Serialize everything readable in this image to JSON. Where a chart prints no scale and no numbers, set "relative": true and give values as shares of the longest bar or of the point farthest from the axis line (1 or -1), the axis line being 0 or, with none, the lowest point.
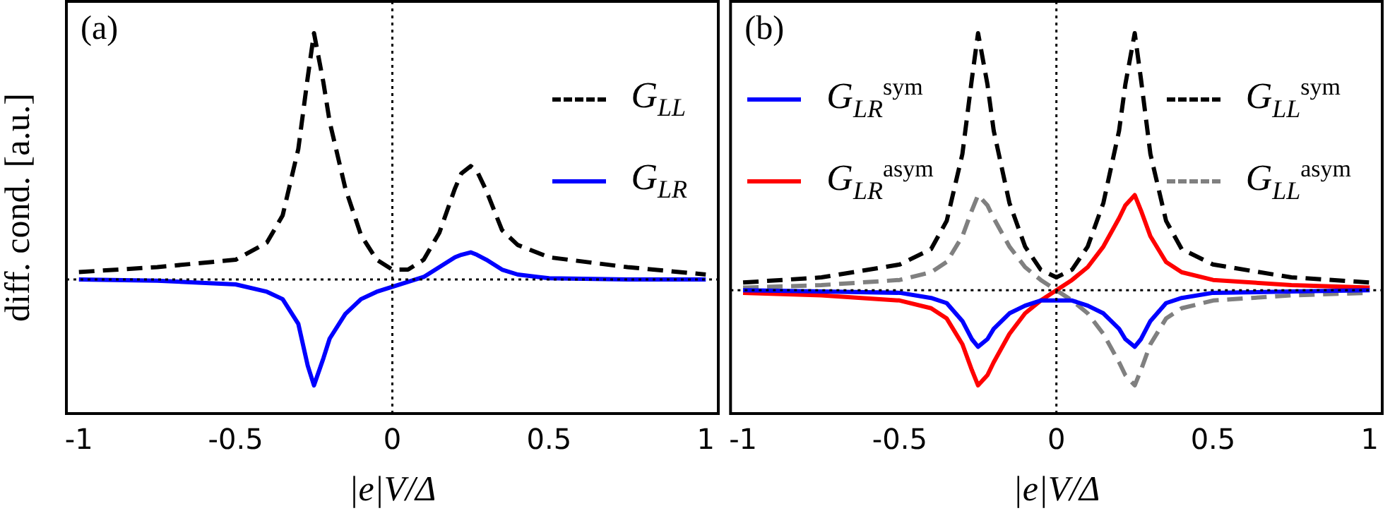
{
  "chart_data": [
    {
      "type": "line",
      "relative": true,
      "x": [
        -1,
        -0.75,
        -0.5,
        -0.4,
        -0.35,
        -0.3,
        -0.27,
        -0.25,
        -0.22,
        -0.2,
        -0.15,
        -0.1,
        -0.05,
        0,
        0.05,
        0.1,
        0.15,
        0.2,
        0.22,
        0.25,
        0.27,
        0.3,
        0.35,
        0.4,
        0.5,
        0.75,
        1
      ],
      "xlim": [
        -1.04,
        1.04
      ],
      "xticks": [
        -1,
        -0.5,
        0,
        0.5,
        1
      ],
      "xlabel": "|e|V/Δ",
      "ylabel": "diff. cond. [a.u.]",
      "annotations": [
        "(a)"
      ],
      "legend": "top right",
      "ref_lines": [
        {
          "axis": "x",
          "value": 0,
          "line_style": "dotted"
        }
      ],
      "series": [
        {
          "name": "G$_{LL}$",
          "color": "#000000",
          "line_style": "dashed",
          "values": [
            0.03,
            0.05,
            0.08,
            0.15,
            0.26,
            0.53,
            0.82,
            1,
            0.8,
            0.64,
            0.37,
            0.18,
            0.08,
            0.04,
            0.04,
            0.08,
            0.19,
            0.37,
            0.43,
            0.46,
            0.44,
            0.36,
            0.2,
            0.14,
            0.09,
            0.05,
            0.02
          ]
        },
        {
          "name": "G$_{LR}$",
          "color": "#0000ff",
          "line_style": "solid",
          "values": [
            0,
            -0.005,
            -0.02,
            -0.05,
            -0.08,
            -0.18,
            -0.35,
            -0.43,
            -0.32,
            -0.24,
            -0.14,
            -0.08,
            -0.05,
            -0.03,
            -0.01,
            0.01,
            0.05,
            0.09,
            0.1,
            0.11,
            0.1,
            0.08,
            0.04,
            0.02,
            0.005,
            0,
            0
          ]
        }
      ]
    },
    {
      "type": "line",
      "relative": true,
      "x": [
        -1,
        -0.75,
        -0.5,
        -0.4,
        -0.35,
        -0.3,
        -0.27,
        -0.25,
        -0.22,
        -0.2,
        -0.15,
        -0.1,
        -0.05,
        0,
        0.05,
        0.1,
        0.15,
        0.2,
        0.22,
        0.25,
        0.27,
        0.3,
        0.35,
        0.4,
        0.5,
        0.75,
        1
      ],
      "xlim": [
        -1.04,
        1.04
      ],
      "xticks": [
        -1,
        -0.5,
        0,
        0.5,
        1
      ],
      "xlabel": "|e|V/Δ",
      "annotations": [
        "(b)"
      ],
      "legend": "top",
      "ref_lines": [
        {
          "axis": "x",
          "value": 0,
          "line_style": "dotted"
        }
      ],
      "series": [
        {
          "name": "G$_{LR}$$^{sym}$",
          "color": "#0000ff",
          "line_style": "solid",
          "values": [
            0,
            -0.005,
            -0.01,
            -0.03,
            -0.05,
            -0.12,
            -0.19,
            -0.22,
            -0.19,
            -0.15,
            -0.09,
            -0.06,
            -0.04,
            -0.04,
            -0.04,
            -0.06,
            -0.09,
            -0.15,
            -0.19,
            -0.22,
            -0.19,
            -0.12,
            -0.05,
            -0.03,
            -0.01,
            -0.005,
            0
          ]
        },
        {
          "name": "G$_{LR}$$^{asym}$",
          "color": "#ff0000",
          "line_style": "solid",
          "values": [
            -0.01,
            -0.02,
            -0.04,
            -0.07,
            -0.11,
            -0.21,
            -0.31,
            -0.37,
            -0.33,
            -0.28,
            -0.17,
            -0.09,
            -0.04,
            0,
            0.04,
            0.09,
            0.17,
            0.28,
            0.33,
            0.37,
            0.31,
            0.21,
            0.11,
            0.07,
            0.04,
            0.02,
            0.01
          ]
        },
        {
          "name": "G$_{LL}$$^{sym}$",
          "color": "#000000",
          "line_style": "dashed",
          "values": [
            0.03,
            0.05,
            0.1,
            0.16,
            0.27,
            0.53,
            0.82,
            1,
            0.8,
            0.62,
            0.34,
            0.17,
            0.08,
            0.05,
            0.08,
            0.17,
            0.34,
            0.62,
            0.8,
            1,
            0.82,
            0.53,
            0.27,
            0.16,
            0.1,
            0.05,
            0.03
          ]
        },
        {
          "name": "G$_{LL}$$^{asym}$",
          "color": "#808080",
          "line_style": "dashed",
          "values": [
            0.01,
            0.02,
            0.04,
            0.07,
            0.11,
            0.21,
            0.31,
            0.37,
            0.33,
            0.28,
            0.17,
            0.09,
            0.04,
            0,
            -0.04,
            -0.09,
            -0.17,
            -0.28,
            -0.33,
            -0.37,
            -0.31,
            -0.21,
            -0.11,
            -0.07,
            -0.04,
            -0.02,
            -0.01
          ]
        }
      ]
    }
  ]
}
